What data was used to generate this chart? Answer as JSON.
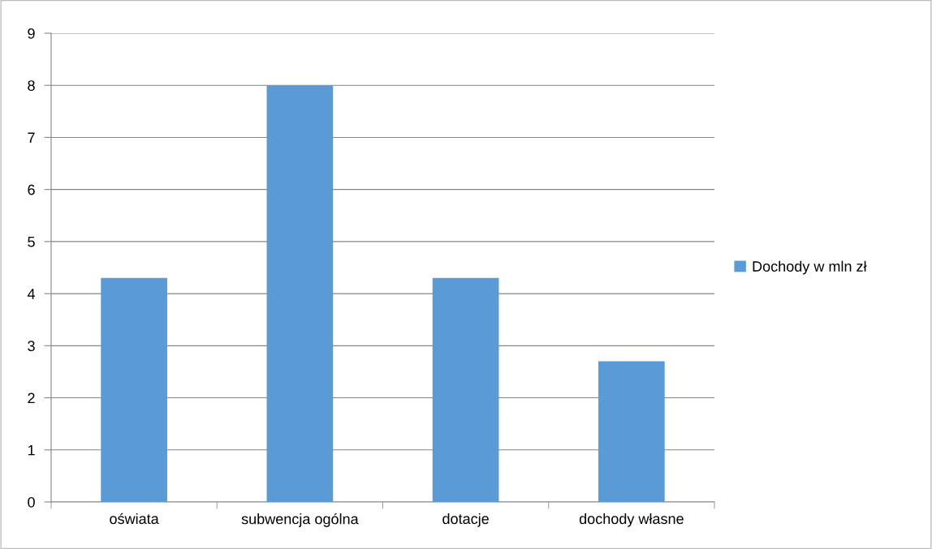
{
  "chart_data": {
    "type": "bar",
    "categories": [
      "oświata",
      "subwencja ogólna",
      "dotacje",
      "dochody własne"
    ],
    "series": [
      {
        "name": "Dochody w mln zł",
        "color": "#5b9bd5",
        "values": [
          4.3,
          8,
          4.3,
          2.7
        ]
      }
    ],
    "ylim": [
      0,
      9
    ],
    "yticks": [
      0,
      1,
      2,
      3,
      4,
      5,
      6,
      7,
      8,
      9
    ],
    "grid": "y",
    "legend": "right"
  }
}
